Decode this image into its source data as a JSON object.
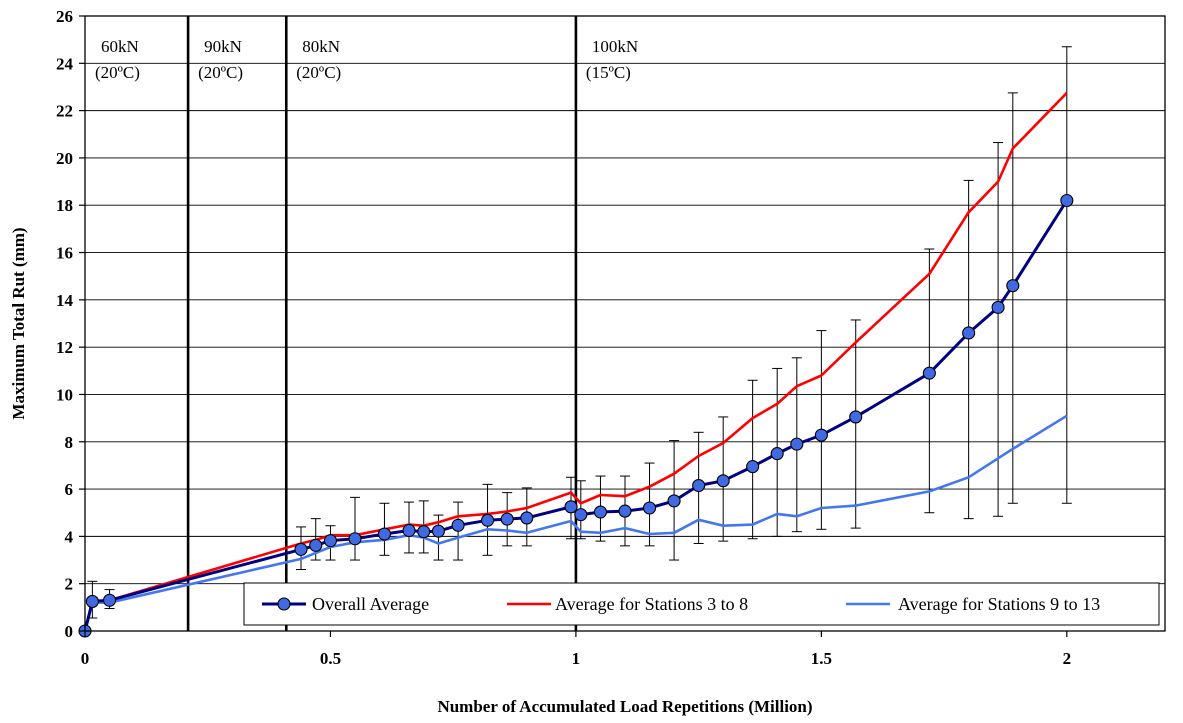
{
  "chart_data": {
    "type": "line",
    "xlabel": "Number of Accumulated Load Repetitions (Million)",
    "ylabel": "Maximum Total Rut (mm)",
    "xlim": [
      0,
      2.2
    ],
    "ylim": [
      0,
      26
    ],
    "x_ticks": [
      {
        "value": 0,
        "label": "0"
      },
      {
        "value": 0.5,
        "label": "0.5"
      },
      {
        "value": 1,
        "label": "1"
      },
      {
        "value": 1.5,
        "label": "1.5"
      },
      {
        "value": 2,
        "label": "2"
      }
    ],
    "y_ticks": [
      {
        "value": 0,
        "label": "0"
      },
      {
        "value": 2,
        "label": "2"
      },
      {
        "value": 4,
        "label": "4"
      },
      {
        "value": 6,
        "label": "6"
      },
      {
        "value": 8,
        "label": "8"
      },
      {
        "value": 10,
        "label": "10"
      },
      {
        "value": 12,
        "label": "12"
      },
      {
        "value": 14,
        "label": "14"
      },
      {
        "value": 16,
        "label": "16"
      },
      {
        "value": 18,
        "label": "18"
      },
      {
        "value": 20,
        "label": "20"
      },
      {
        "value": 22,
        "label": "22"
      },
      {
        "value": 24,
        "label": "24"
      },
      {
        "value": 26,
        "label": "26"
      }
    ],
    "grid": "horizontal",
    "legend_position": "bottom-right",
    "phases": [
      {
        "boundary": 0.21,
        "load": "60kN",
        "temp": "(20ºC)"
      },
      {
        "boundary": 0.41,
        "load": "90kN",
        "temp": "(20ºC)"
      },
      {
        "boundary": 1.0,
        "load": "80kN",
        "temp": "(20ºC)"
      },
      {
        "boundary": null,
        "load": "100kN",
        "temp": "(15ºC)"
      }
    ],
    "series": [
      {
        "name": "Overall Average",
        "color": "#000080",
        "marker_color": "#4169E1",
        "style": "line-with-markers-and-error-bars",
        "x": [
          0,
          0.015,
          0.05,
          0.44,
          0.47,
          0.5,
          0.55,
          0.61,
          0.66,
          0.69,
          0.72,
          0.76,
          0.82,
          0.86,
          0.9,
          0.99,
          1.01,
          1.05,
          1.1,
          1.15,
          1.2,
          1.25,
          1.3,
          1.36,
          1.41,
          1.45,
          1.5,
          1.57,
          1.72,
          1.8,
          1.86,
          1.89,
          2.0
        ],
        "y": [
          0,
          1.25,
          1.3,
          3.45,
          3.62,
          3.82,
          3.9,
          4.1,
          4.25,
          4.2,
          4.22,
          4.47,
          4.68,
          4.73,
          4.78,
          5.25,
          4.92,
          5.03,
          5.07,
          5.2,
          5.5,
          6.15,
          6.35,
          6.95,
          7.5,
          7.9,
          8.28,
          9.05,
          10.9,
          12.6,
          13.68,
          14.6,
          18.2
        ],
        "err_low": [
          0,
          0.55,
          0.95,
          2.6,
          3.0,
          3.0,
          3.0,
          3.2,
          3.3,
          3.3,
          3.0,
          3.0,
          3.2,
          3.6,
          3.6,
          3.9,
          3.9,
          3.8,
          3.6,
          3.6,
          3.0,
          3.7,
          3.8,
          3.9,
          4.0,
          4.2,
          4.3,
          4.35,
          5.0,
          4.75,
          4.85,
          5.4,
          5.4
        ],
        "err_high": [
          0,
          2.1,
          1.75,
          4.4,
          4.75,
          4.45,
          5.65,
          5.4,
          5.45,
          5.5,
          4.9,
          5.45,
          6.2,
          5.85,
          6.05,
          6.5,
          6.35,
          6.55,
          6.55,
          7.1,
          8.05,
          8.4,
          9.05,
          10.6,
          11.1,
          11.55,
          12.7,
          13.15,
          16.15,
          19.05,
          20.65,
          22.75,
          24.7
        ]
      },
      {
        "name": "Average for Stations 3 to 8",
        "color": "#FF0000",
        "style": "line",
        "x": [
          0,
          0.015,
          0.05,
          0.44,
          0.47,
          0.5,
          0.55,
          0.61,
          0.66,
          0.69,
          0.72,
          0.76,
          0.82,
          0.86,
          0.9,
          0.99,
          1.01,
          1.05,
          1.1,
          1.15,
          1.2,
          1.25,
          1.3,
          1.36,
          1.41,
          1.45,
          1.5,
          1.57,
          1.72,
          1.8,
          1.86,
          1.89,
          2.0
        ],
        "y": [
          0,
          1.25,
          1.3,
          3.7,
          3.85,
          4.05,
          4.05,
          4.3,
          4.5,
          4.45,
          4.6,
          4.85,
          4.95,
          5.05,
          5.2,
          5.85,
          5.4,
          5.75,
          5.7,
          6.1,
          6.65,
          7.4,
          7.95,
          9.0,
          9.6,
          10.35,
          10.8,
          12.2,
          15.1,
          17.7,
          19.0,
          20.4,
          22.75
        ]
      },
      {
        "name": "Average for Stations 9 to 13",
        "color": "#4477EE",
        "style": "line",
        "x": [
          0,
          0.015,
          0.05,
          0.44,
          0.47,
          0.5,
          0.55,
          0.61,
          0.66,
          0.69,
          0.72,
          0.76,
          0.82,
          0.86,
          0.9,
          0.99,
          1.01,
          1.05,
          1.1,
          1.15,
          1.2,
          1.25,
          1.3,
          1.36,
          1.41,
          1.45,
          1.5,
          1.57,
          1.72,
          1.8,
          1.86,
          1.89,
          2.0
        ],
        "y": [
          0,
          1.2,
          1.2,
          3.05,
          3.3,
          3.55,
          3.75,
          3.85,
          4.05,
          3.95,
          3.7,
          3.95,
          4.3,
          4.25,
          4.15,
          4.65,
          4.2,
          4.15,
          4.35,
          4.1,
          4.15,
          4.7,
          4.45,
          4.5,
          4.95,
          4.85,
          5.2,
          5.3,
          5.9,
          6.5,
          7.3,
          7.7,
          9.1
        ]
      }
    ]
  }
}
